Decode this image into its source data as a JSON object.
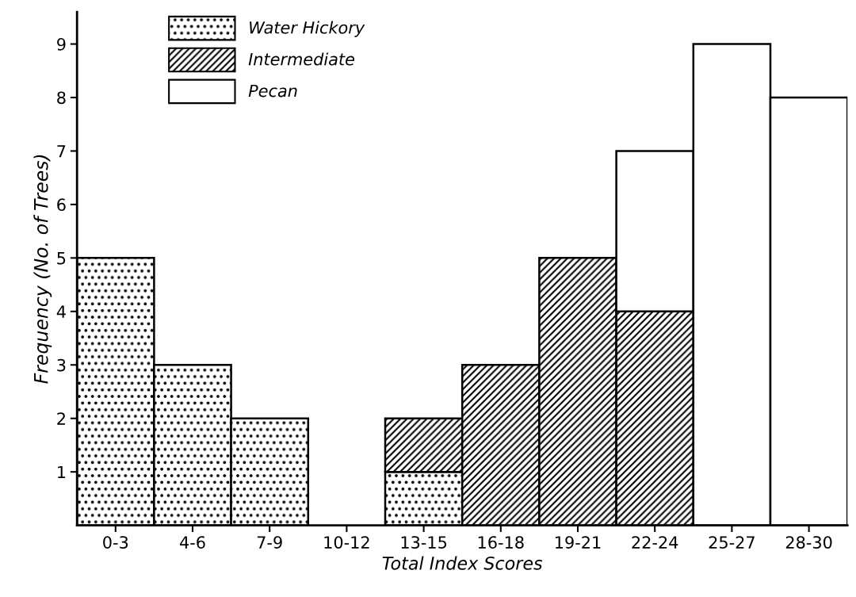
{
  "chart_data": {
    "type": "bar",
    "stacked": true,
    "xlabel": "Total Index Scores",
    "ylabel": "Frequency (No. of Trees)",
    "categories": [
      "0-3",
      "4-6",
      "7-9",
      "10-12",
      "13-15",
      "16-18",
      "19-21",
      "22-24",
      "25-27",
      "28-30"
    ],
    "series": [
      {
        "name": "Water Hickory",
        "color": "#000000",
        "values": [
          5,
          3,
          2,
          null,
          1,
          null,
          null,
          null,
          null,
          null
        ]
      },
      {
        "name": "Intermediate",
        "color": "#000000",
        "values": [
          null,
          null,
          null,
          null,
          1,
          3,
          5,
          4,
          null,
          null
        ]
      },
      {
        "name": "Pecan",
        "color": "#ffffff",
        "values": [
          null,
          null,
          null,
          null,
          null,
          null,
          null,
          3,
          9,
          8
        ]
      }
    ],
    "ylim": [
      0,
      9.6
    ],
    "yticks": [
      1,
      2,
      3,
      4,
      5,
      6,
      7,
      8,
      9
    ],
    "grid": false,
    "legend": "top left"
  }
}
